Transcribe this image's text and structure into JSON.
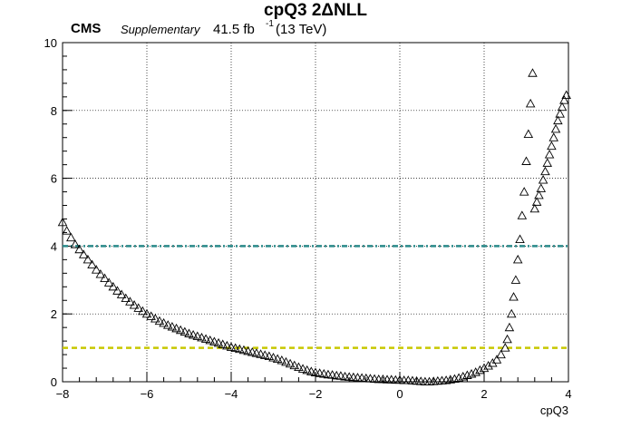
{
  "chart_data": {
    "type": "scatter",
    "title": "cpQ3 2ΔNLL",
    "xlabel": "cpQ3",
    "ylabel": "",
    "xlim": [
      -8,
      4
    ],
    "ylim": [
      0,
      10
    ],
    "grid": true,
    "xticks": [
      -8,
      -6,
      -4,
      -2,
      0,
      2,
      4
    ],
    "yticks": [
      0,
      2,
      4,
      6,
      8,
      10
    ],
    "header": {
      "experiment": "CMS",
      "tag": "Supplementary",
      "lumi_value": "41.5 fb",
      "lumi_exp": "-1",
      "energy": "(13 TeV)"
    },
    "reference_lines": [
      {
        "y": 4,
        "color": "#2a8a8a",
        "style": "dash-dot"
      },
      {
        "y": 1,
        "color": "#c8c800",
        "style": "dashed"
      }
    ],
    "marker": "open-triangle",
    "series": [
      {
        "points": [
          [
            -8.0,
            4.7
          ],
          [
            -7.9,
            4.45
          ],
          [
            -7.8,
            4.25
          ],
          [
            -7.7,
            4.05
          ],
          [
            -7.6,
            3.9
          ],
          [
            -7.5,
            3.75
          ],
          [
            -7.4,
            3.6
          ],
          [
            -7.3,
            3.45
          ],
          [
            -7.2,
            3.3
          ],
          [
            -7.1,
            3.17
          ],
          [
            -7.0,
            3.05
          ],
          [
            -6.9,
            2.92
          ],
          [
            -6.8,
            2.8
          ],
          [
            -6.7,
            2.68
          ],
          [
            -6.6,
            2.57
          ],
          [
            -6.5,
            2.46
          ],
          [
            -6.4,
            2.36
          ],
          [
            -6.3,
            2.26
          ],
          [
            -6.2,
            2.17
          ],
          [
            -6.1,
            2.08
          ],
          [
            -6.0,
            2.0
          ],
          [
            -5.9,
            1.93
          ],
          [
            -5.8,
            1.86
          ],
          [
            -5.7,
            1.79
          ],
          [
            -5.6,
            1.73
          ],
          [
            -5.5,
            1.67
          ],
          [
            -5.4,
            1.62
          ],
          [
            -5.3,
            1.57
          ],
          [
            -5.2,
            1.52
          ],
          [
            -5.1,
            1.47
          ],
          [
            -5.0,
            1.42
          ],
          [
            -4.9,
            1.38
          ],
          [
            -4.8,
            1.34
          ],
          [
            -4.7,
            1.3
          ],
          [
            -4.6,
            1.26
          ],
          [
            -4.5,
            1.22
          ],
          [
            -4.4,
            1.18
          ],
          [
            -4.3,
            1.14
          ],
          [
            -4.2,
            1.1
          ],
          [
            -4.1,
            1.06
          ],
          [
            -4.0,
            1.02
          ],
          [
            -3.9,
            0.99
          ],
          [
            -3.8,
            0.96
          ],
          [
            -3.7,
            0.93
          ],
          [
            -3.6,
            0.9
          ],
          [
            -3.5,
            0.87
          ],
          [
            -3.4,
            0.84
          ],
          [
            -3.3,
            0.81
          ],
          [
            -3.2,
            0.78
          ],
          [
            -3.1,
            0.75
          ],
          [
            -3.0,
            0.71
          ],
          [
            -2.9,
            0.67
          ],
          [
            -2.8,
            0.63
          ],
          [
            -2.7,
            0.58
          ],
          [
            -2.6,
            0.53
          ],
          [
            -2.5,
            0.48
          ],
          [
            -2.4,
            0.43
          ],
          [
            -2.3,
            0.38
          ],
          [
            -2.2,
            0.34
          ],
          [
            -2.1,
            0.3
          ],
          [
            -2.0,
            0.27
          ],
          [
            -1.9,
            0.25
          ],
          [
            -1.8,
            0.23
          ],
          [
            -1.7,
            0.21
          ],
          [
            -1.6,
            0.2
          ],
          [
            -1.5,
            0.18
          ],
          [
            -1.4,
            0.17
          ],
          [
            -1.3,
            0.15
          ],
          [
            -1.2,
            0.14
          ],
          [
            -1.1,
            0.13
          ],
          [
            -1.0,
            0.12
          ],
          [
            -0.9,
            0.11
          ],
          [
            -0.8,
            0.1
          ],
          [
            -0.7,
            0.09
          ],
          [
            -0.6,
            0.08
          ],
          [
            -0.5,
            0.07
          ],
          [
            -0.4,
            0.07
          ],
          [
            -0.3,
            0.06
          ],
          [
            -0.2,
            0.06
          ],
          [
            -0.1,
            0.05
          ],
          [
            0.0,
            0.05
          ],
          [
            0.1,
            0.04
          ],
          [
            0.2,
            0.04
          ],
          [
            0.3,
            0.03
          ],
          [
            0.4,
            0.02
          ],
          [
            0.5,
            0.01
          ],
          [
            0.6,
            0.0
          ],
          [
            0.7,
            0.0
          ],
          [
            0.8,
            0.01
          ],
          [
            0.9,
            0.02
          ],
          [
            1.0,
            0.03
          ],
          [
            1.1,
            0.04
          ],
          [
            1.2,
            0.06
          ],
          [
            1.3,
            0.08
          ],
          [
            1.4,
            0.11
          ],
          [
            1.5,
            0.15
          ],
          [
            1.6,
            0.19
          ],
          [
            1.7,
            0.23
          ],
          [
            1.8,
            0.28
          ],
          [
            1.9,
            0.34
          ],
          [
            2.0,
            0.4
          ],
          [
            2.1,
            0.47
          ],
          [
            2.2,
            0.55
          ],
          [
            2.3,
            0.65
          ],
          [
            2.4,
            0.8
          ],
          [
            2.5,
            1.0
          ],
          [
            2.55,
            1.25
          ],
          [
            2.6,
            1.6
          ],
          [
            2.65,
            2.0
          ],
          [
            2.7,
            2.5
          ],
          [
            2.75,
            3.0
          ],
          [
            2.8,
            3.6
          ],
          [
            2.85,
            4.2
          ],
          [
            2.9,
            4.9
          ],
          [
            2.95,
            5.6
          ],
          [
            3.0,
            6.5
          ],
          [
            3.05,
            7.3
          ],
          [
            3.1,
            8.2
          ],
          [
            3.15,
            9.1
          ],
          [
            3.2,
            5.1
          ],
          [
            3.25,
            5.3
          ],
          [
            3.3,
            5.5
          ],
          [
            3.35,
            5.7
          ],
          [
            3.4,
            5.95
          ],
          [
            3.45,
            6.2
          ],
          [
            3.5,
            6.45
          ],
          [
            3.55,
            6.7
          ],
          [
            3.6,
            6.95
          ],
          [
            3.65,
            7.2
          ],
          [
            3.7,
            7.45
          ],
          [
            3.75,
            7.7
          ],
          [
            3.8,
            7.9
          ],
          [
            3.85,
            8.1
          ],
          [
            3.9,
            8.3
          ],
          [
            3.95,
            8.45
          ]
        ]
      }
    ]
  }
}
